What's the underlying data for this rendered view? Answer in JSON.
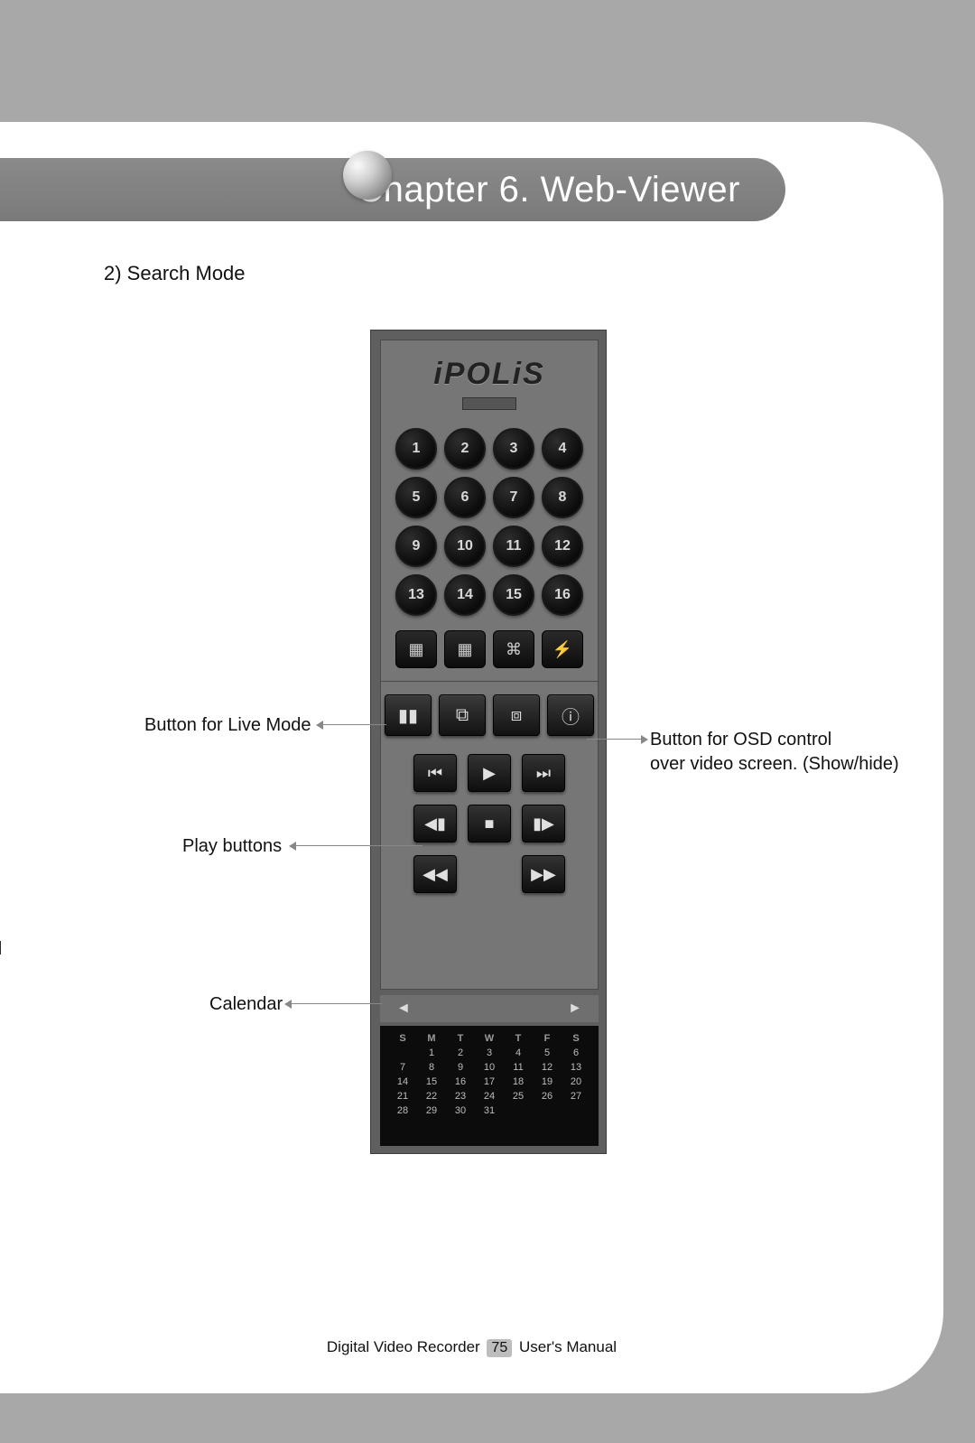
{
  "chapter": {
    "title": "Chapter 6. Web-Viewer"
  },
  "section": {
    "title": "2) Search Mode"
  },
  "cut_text": "ed",
  "panel": {
    "logo": "iPOLiS",
    "numbers": [
      "1",
      "2",
      "3",
      "4",
      "5",
      "6",
      "7",
      "8",
      "9",
      "10",
      "11",
      "12",
      "13",
      "14",
      "15",
      "16"
    ],
    "mode_icons": [
      "▦",
      "▦",
      "⌘",
      "⚡"
    ],
    "big_icons": [
      "▮▮",
      "⧉",
      "⧈",
      "ⓘ"
    ],
    "play_rows": [
      [
        "⏮",
        "▶",
        "⏭"
      ],
      [
        "◀▮",
        "■",
        "▮▶"
      ],
      [
        "◀◀",
        "",
        "▶▶"
      ]
    ],
    "cal_nav": {
      "left": "◄",
      "right": "►"
    },
    "calendar": {
      "headers": [
        "S",
        "M",
        "T",
        "W",
        "T",
        "F",
        "S"
      ],
      "rows": [
        [
          "",
          "1",
          "2",
          "3",
          "4",
          "5",
          "6"
        ],
        [
          "7",
          "8",
          "9",
          "10",
          "11",
          "12",
          "13"
        ],
        [
          "14",
          "15",
          "16",
          "17",
          "18",
          "19",
          "20"
        ],
        [
          "21",
          "22",
          "23",
          "24",
          "25",
          "26",
          "27"
        ],
        [
          "28",
          "29",
          "30",
          "31",
          "",
          "",
          ""
        ]
      ]
    }
  },
  "callouts": {
    "live_mode": "Button for Live Mode",
    "osd_line1": "Button for OSD control",
    "osd_line2": "over video screen. (Show/hide)",
    "play": "Play buttons",
    "calendar": "Calendar"
  },
  "footer": {
    "before": "Digital Video Recorder",
    "page": "75",
    "after": "User's Manual"
  }
}
